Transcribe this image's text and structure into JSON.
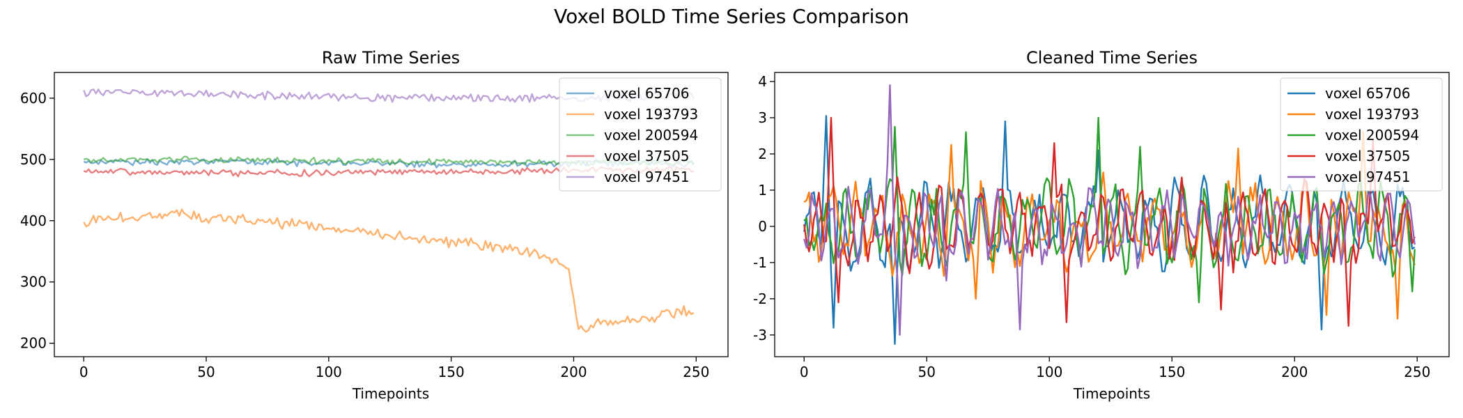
{
  "figure": {
    "suptitle": "Voxel BOLD Time Series Comparison"
  },
  "chart_data": [
    {
      "type": "line",
      "title": "Raw Time Series",
      "xlabel": "Timepoints",
      "ylabel": "",
      "xlim": [
        -12,
        263
      ],
      "ylim": [
        178,
        642
      ],
      "xticks": [
        0,
        50,
        100,
        150,
        200,
        250
      ],
      "yticks": [
        200,
        300,
        400,
        500,
        600
      ],
      "legend": "top-right",
      "line_alpha": 0.6,
      "series": [
        {
          "name": "voxel 65706",
          "color": "#1f77b4",
          "base": 494,
          "noise": 4,
          "anchors": [
            [
              0,
              495
            ],
            [
              50,
              496
            ],
            [
              100,
              494
            ],
            [
              150,
              492
            ],
            [
              200,
              494
            ],
            [
              250,
              493
            ]
          ]
        },
        {
          "name": "voxel 193793",
          "color": "#ff7f0e",
          "base": 400,
          "noise": 7,
          "anchors": [
            [
              0,
              398
            ],
            [
              10,
              405
            ],
            [
              40,
              412
            ],
            [
              50,
              402
            ],
            [
              70,
              400
            ],
            [
              100,
              388
            ],
            [
              130,
              375
            ],
            [
              160,
              360
            ],
            [
              180,
              348
            ],
            [
              195,
              333
            ],
            [
              198,
              320
            ],
            [
              202,
              225
            ],
            [
              210,
              232
            ],
            [
              220,
              236
            ],
            [
              235,
              244
            ],
            [
              245,
              256
            ],
            [
              250,
              248
            ]
          ]
        },
        {
          "name": "voxel 200594",
          "color": "#2ca02c",
          "base": 498,
          "noise": 4,
          "anchors": [
            [
              0,
              498
            ],
            [
              40,
              500
            ],
            [
              100,
              497
            ],
            [
              150,
              496
            ],
            [
              200,
              495
            ],
            [
              250,
              494
            ]
          ]
        },
        {
          "name": "voxel 37505",
          "color": "#d62728",
          "base": 480,
          "noise": 4,
          "anchors": [
            [
              0,
              481
            ],
            [
              50,
              478
            ],
            [
              100,
              478
            ],
            [
              150,
              480
            ],
            [
              200,
              482
            ],
            [
              250,
              483
            ]
          ]
        },
        {
          "name": "voxel 97451",
          "color": "#9467bd",
          "base": 605,
          "noise": 5,
          "anchors": [
            [
              0,
              610
            ],
            [
              50,
              608
            ],
            [
              100,
              602
            ],
            [
              150,
              600
            ],
            [
              200,
              600
            ],
            [
              250,
              604
            ]
          ]
        }
      ]
    },
    {
      "type": "line",
      "title": "Cleaned Time Series",
      "xlabel": "Timepoints",
      "ylabel": "",
      "xlim": [
        -12,
        263
      ],
      "ylim": [
        -3.6,
        4.25
      ],
      "xticks": [
        0,
        50,
        100,
        150,
        200,
        250
      ],
      "yticks": [
        -3,
        -2,
        -1,
        0,
        1,
        2,
        3,
        4
      ],
      "legend": "top-right",
      "line_alpha": 1.0,
      "series": [
        {
          "name": "voxel 65706",
          "color": "#1f77b4",
          "amplitude": 1.1,
          "peaks": [
            [
              9,
              3.05
            ],
            [
              12,
              -2.8
            ],
            [
              37,
              -3.25
            ],
            [
              82,
              2.9
            ],
            [
              211,
              -2.85
            ],
            [
              120,
              2.1
            ]
          ]
        },
        {
          "name": "voxel 193793",
          "color": "#ff7f0e",
          "amplitude": 1.0,
          "peaks": [
            [
              60,
              2.25
            ],
            [
              70,
              -2.0
            ],
            [
              177,
              2.15
            ],
            [
              213,
              -2.45
            ],
            [
              242,
              -2.55
            ],
            [
              228,
              2.6
            ]
          ]
        },
        {
          "name": "voxel 200594",
          "color": "#2ca02c",
          "amplitude": 1.1,
          "peaks": [
            [
              37,
              2.75
            ],
            [
              66,
              2.6
            ],
            [
              120,
              3.0
            ],
            [
              137,
              2.2
            ],
            [
              161,
              -2.1
            ],
            [
              248,
              -1.8
            ]
          ]
        },
        {
          "name": "voxel 37505",
          "color": "#d62728",
          "amplitude": 1.0,
          "peaks": [
            [
              11,
              3.0
            ],
            [
              14,
              -2.1
            ],
            [
              102,
              2.3
            ],
            [
              107,
              -2.65
            ],
            [
              170,
              -2.3
            ],
            [
              222,
              -2.75
            ],
            [
              232,
              2.4
            ]
          ]
        },
        {
          "name": "voxel 97451",
          "color": "#9467bd",
          "amplitude": 0.9,
          "peaks": [
            [
              35,
              3.9
            ],
            [
              39,
              -3.0
            ],
            [
              88,
              -2.85
            ],
            [
              58,
              -1.5
            ]
          ]
        }
      ]
    }
  ]
}
